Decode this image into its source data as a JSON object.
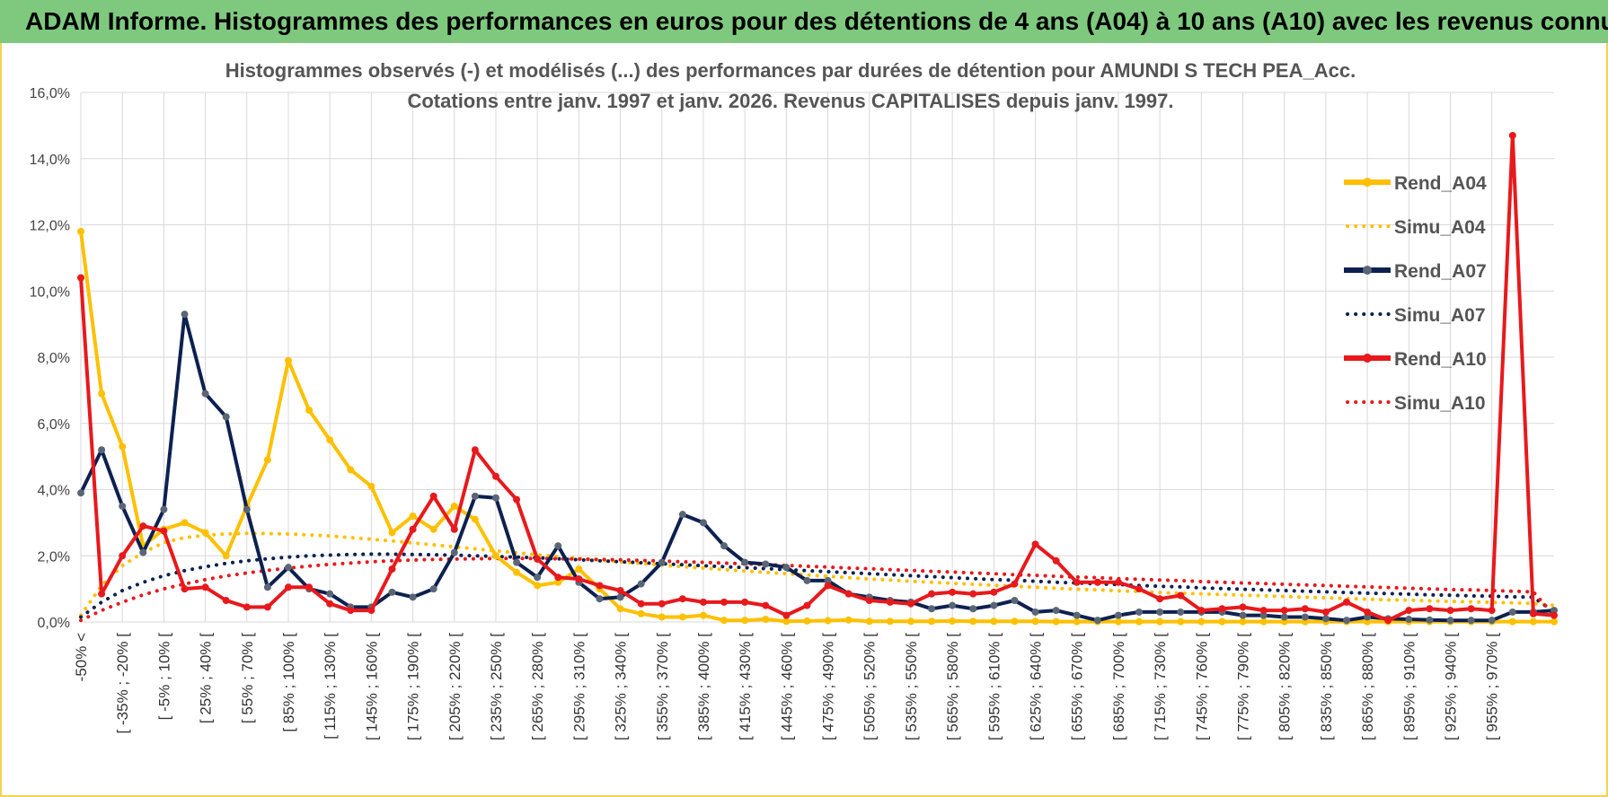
{
  "banner": {
    "title": "ADAM Informe. Histogrammes des performances en euros pour des détentions de 4 ans (A04) à 10 ans (A10) avec les revenus connus capitalisés"
  },
  "chart_data": {
    "type": "line",
    "title": "Histogrammes observés (-) et modélisés (...) des performances par durées de détention pour AMUNDI S TECH PEA_Acc.",
    "subtitle": "Cotations entre janv. 1997 et janv. 2026. Revenus CAPITALISES depuis janv. 1997.",
    "xlabel": "",
    "ylabel": "",
    "ylim": [
      0,
      16
    ],
    "y_ticks": [
      "0,0%",
      "2,0%",
      "4,0%",
      "6,0%",
      "8,0%",
      "10,0%",
      "12,0%",
      "14,0%",
      "16,0%"
    ],
    "grid": true,
    "legend_position": "right",
    "category_labels": [
      "-50% <",
      "[ -35% ; -20% [",
      "[ -5% ; 10% [",
      "[ 25% ; 40% [",
      "[ 55% ; 70% [",
      "[ 85% ; 100% [",
      "[ 115% ; 130% [",
      "[ 145% ; 160% [",
      "[ 175% ; 190% [",
      "[ 205% ; 220% [",
      "[ 235% ; 250% [",
      "[ 265% ; 280% [",
      "[ 295% ; 310% [",
      "[ 325% ; 340% [",
      "[ 355% ; 370% [",
      "[ 385% ; 400% [",
      "[ 415% ; 430% [",
      "[ 445% ; 460% [",
      "[ 475% ; 490% [",
      "[ 505% ; 520% [",
      "[ 535% ; 550% [",
      "[ 565% ; 580% [",
      "[ 595% ; 610% [",
      "[ 625% ; 640% [",
      "[ 655% ; 670% [",
      "[ 685% ; 700% [",
      "[ 715% ; 730% [",
      "[ 745% ; 760% [",
      "[ 775% ; 790% [",
      "[ 805% ; 820% [",
      "[ 835% ; 850% [",
      "[ 865% ; 880% [",
      "[ 895% ; 910% [",
      "[ 925% ; 940% [",
      "[ 955% ; 970% ["
    ],
    "category_label_every": 2,
    "series": [
      {
        "name": "Rend_A04",
        "color": "#ffc000",
        "style": "solid",
        "values": [
          11.8,
          6.9,
          5.3,
          2.3,
          2.8,
          3.0,
          2.7,
          2.0,
          3.5,
          4.9,
          7.9,
          6.4,
          5.5,
          4.6,
          4.1,
          2.7,
          3.2,
          2.8,
          3.5,
          3.1,
          2.0,
          1.5,
          1.1,
          1.2,
          1.6,
          1.0,
          0.4,
          0.25,
          0.15,
          0.15,
          0.2,
          0.05,
          0.05,
          0.08,
          0.02,
          0.03,
          0.04,
          0.06,
          0.02,
          0.02,
          0.02,
          0.02,
          0.03,
          0.02,
          0.02,
          0.02,
          0.02,
          0.01,
          0.01,
          0.01,
          0.01,
          0.01,
          0.01,
          0.01,
          0.01,
          0.01,
          0.01,
          0.01,
          0.01,
          0.01,
          0.01,
          0.01,
          0.01,
          0.01,
          0.01,
          0.01,
          0.01,
          0.01,
          0.01,
          0.01,
          0.01,
          0.01
        ]
      },
      {
        "name": "Simu_A04",
        "color": "#ffc000",
        "style": "dotted",
        "values": [
          0.2,
          1.1,
          1.7,
          2.1,
          2.4,
          2.55,
          2.62,
          2.66,
          2.68,
          2.67,
          2.66,
          2.63,
          2.6,
          2.55,
          2.5,
          2.45,
          2.39,
          2.33,
          2.27,
          2.21,
          2.15,
          2.09,
          2.03,
          1.98,
          1.92,
          1.87,
          1.82,
          1.77,
          1.72,
          1.67,
          1.63,
          1.58,
          1.54,
          1.5,
          1.46,
          1.42,
          1.38,
          1.34,
          1.3,
          1.27,
          1.23,
          1.2,
          1.17,
          1.14,
          1.11,
          1.08,
          1.05,
          1.02,
          0.99,
          0.97,
          0.94,
          0.92,
          0.89,
          0.87,
          0.85,
          0.83,
          0.81,
          0.79,
          0.77,
          0.75,
          0.73,
          0.71,
          0.69,
          0.67,
          0.66,
          0.64,
          0.62,
          0.61,
          0.59,
          0.58,
          0.56,
          0.5
        ]
      },
      {
        "name": "Rend_A07",
        "color": "#0d2150",
        "style": "solid",
        "values": [
          3.9,
          5.2,
          3.5,
          2.1,
          3.4,
          9.3,
          6.9,
          6.2,
          3.4,
          1.05,
          1.65,
          1.0,
          0.85,
          0.45,
          0.45,
          0.9,
          0.75,
          1.0,
          2.1,
          3.8,
          3.75,
          1.8,
          1.35,
          2.3,
          1.2,
          0.7,
          0.75,
          1.15,
          1.8,
          3.25,
          3.0,
          2.3,
          1.8,
          1.75,
          1.65,
          1.25,
          1.25,
          0.85,
          0.75,
          0.65,
          0.6,
          0.4,
          0.5,
          0.4,
          0.5,
          0.65,
          0.3,
          0.35,
          0.2,
          0.05,
          0.2,
          0.3,
          0.3,
          0.3,
          0.3,
          0.3,
          0.2,
          0.2,
          0.15,
          0.15,
          0.1,
          0.05,
          0.15,
          0.1,
          0.08,
          0.06,
          0.05,
          0.05,
          0.05,
          0.3,
          0.3,
          0.35
        ]
      },
      {
        "name": "Simu_A07",
        "color": "#0d2150",
        "style": "dotted",
        "values": [
          0.15,
          0.6,
          0.95,
          1.2,
          1.4,
          1.55,
          1.67,
          1.77,
          1.85,
          1.91,
          1.96,
          2.0,
          2.02,
          2.04,
          2.05,
          2.05,
          2.04,
          2.03,
          2.02,
          2.0,
          1.98,
          1.96,
          1.94,
          1.91,
          1.88,
          1.85,
          1.82,
          1.79,
          1.76,
          1.73,
          1.7,
          1.67,
          1.64,
          1.61,
          1.58,
          1.55,
          1.52,
          1.49,
          1.46,
          1.43,
          1.4,
          1.37,
          1.34,
          1.31,
          1.28,
          1.26,
          1.23,
          1.2,
          1.18,
          1.15,
          1.13,
          1.1,
          1.08,
          1.06,
          1.03,
          1.01,
          0.99,
          0.97,
          0.95,
          0.93,
          0.91,
          0.89,
          0.87,
          0.86,
          0.84,
          0.82,
          0.81,
          0.79,
          0.78,
          0.76,
          0.75,
          0.3
        ]
      },
      {
        "name": "Rend_A10",
        "color": "#e8191c",
        "style": "solid",
        "values": [
          10.4,
          0.85,
          2.0,
          2.9,
          2.75,
          1.0,
          1.05,
          0.65,
          0.45,
          0.45,
          1.05,
          1.05,
          0.55,
          0.35,
          0.35,
          1.6,
          2.8,
          3.8,
          2.8,
          5.2,
          4.4,
          3.7,
          1.9,
          1.35,
          1.3,
          1.1,
          0.95,
          0.55,
          0.55,
          0.7,
          0.6,
          0.6,
          0.6,
          0.5,
          0.2,
          0.5,
          1.1,
          0.85,
          0.65,
          0.6,
          0.55,
          0.85,
          0.9,
          0.85,
          0.9,
          1.15,
          2.35,
          1.85,
          1.2,
          1.2,
          1.2,
          1.0,
          0.7,
          0.8,
          0.35,
          0.4,
          0.45,
          0.35,
          0.35,
          0.4,
          0.3,
          0.6,
          0.3,
          0.05,
          0.35,
          0.4,
          0.35,
          0.4,
          0.35,
          14.7,
          0.25,
          0.2
        ]
      },
      {
        "name": "Simu_A10",
        "color": "#e8191c",
        "style": "dotted",
        "values": [
          0.05,
          0.35,
          0.6,
          0.82,
          1.0,
          1.15,
          1.28,
          1.39,
          1.48,
          1.56,
          1.63,
          1.69,
          1.74,
          1.78,
          1.82,
          1.85,
          1.87,
          1.89,
          1.9,
          1.91,
          1.92,
          1.92,
          1.92,
          1.91,
          1.9,
          1.89,
          1.88,
          1.86,
          1.84,
          1.82,
          1.8,
          1.78,
          1.76,
          1.73,
          1.71,
          1.68,
          1.66,
          1.63,
          1.61,
          1.58,
          1.56,
          1.53,
          1.51,
          1.48,
          1.46,
          1.43,
          1.41,
          1.38,
          1.36,
          1.34,
          1.31,
          1.29,
          1.27,
          1.25,
          1.22,
          1.2,
          1.18,
          1.16,
          1.14,
          1.12,
          1.1,
          1.08,
          1.06,
          1.04,
          1.02,
          1.0,
          0.98,
          0.97,
          0.95,
          0.93,
          0.91,
          0.2
        ]
      }
    ]
  }
}
